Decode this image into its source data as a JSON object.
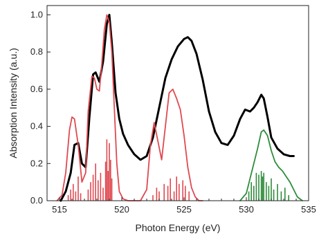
{
  "chart_data": {
    "type": "line",
    "title": "",
    "xlabel": "Photon Energy (eV)",
    "ylabel": "Absorption Intensity (a.u.)",
    "xlim": [
      514,
      535
    ],
    "ylim": [
      0,
      1.05
    ],
    "xticks": [
      515,
      520,
      525,
      530,
      535
    ],
    "yticks": [
      0.0,
      0.2,
      0.4,
      0.6,
      0.8,
      1.0
    ],
    "xtick_labels": [
      "515",
      "520",
      "525",
      "530",
      "535"
    ],
    "ytick_labels": [
      "0.0",
      "0.2",
      "0.4",
      "0.6",
      "0.8",
      "1.0"
    ],
    "grid": false,
    "legend": "none",
    "series": [
      {
        "color": "#000000",
        "style": "line",
        "x": [
          515.1,
          515.5,
          515.9,
          516.2,
          516.5,
          516.8,
          517.1,
          517.4,
          517.7,
          517.9,
          518.2,
          518.5,
          518.8,
          519.0,
          519.2,
          519.5,
          519.8,
          520.1,
          520.5,
          521.0,
          521.5,
          522.0,
          522.5,
          523.0,
          523.5,
          524.0,
          524.5,
          525.0,
          525.3,
          525.6,
          526.0,
          526.5,
          527.0,
          527.5,
          528.0,
          528.5,
          529.0,
          529.5,
          529.9,
          530.3,
          530.6,
          530.9,
          531.2,
          531.4,
          531.7,
          532.0,
          532.5,
          533.0,
          533.5,
          533.8
        ],
        "y": [
          0.0,
          0.05,
          0.15,
          0.3,
          0.31,
          0.2,
          0.18,
          0.45,
          0.68,
          0.69,
          0.64,
          0.75,
          0.95,
          1.0,
          0.85,
          0.58,
          0.44,
          0.36,
          0.3,
          0.25,
          0.22,
          0.24,
          0.34,
          0.5,
          0.66,
          0.76,
          0.83,
          0.87,
          0.88,
          0.86,
          0.79,
          0.65,
          0.48,
          0.37,
          0.31,
          0.3,
          0.35,
          0.44,
          0.49,
          0.48,
          0.5,
          0.53,
          0.57,
          0.55,
          0.45,
          0.34,
          0.28,
          0.25,
          0.24,
          0.24
        ]
      },
      {
        "color": "#e0484f",
        "style": "line",
        "x": [
          514.8,
          515.2,
          515.5,
          515.8,
          516.0,
          516.2,
          516.5,
          516.8,
          517.1,
          517.3,
          517.6,
          517.8,
          518.0,
          518.2,
          518.4,
          518.6,
          518.8,
          519.0,
          519.2,
          519.4,
          519.6,
          519.8,
          520.1,
          520.5,
          521.0,
          521.5,
          522.0,
          522.3,
          522.6,
          522.9,
          523.2,
          523.5,
          523.8,
          524.1,
          524.4,
          524.7,
          525.0,
          525.3,
          525.6,
          525.9,
          526.2,
          526.5
        ],
        "y": [
          0.0,
          0.03,
          0.15,
          0.38,
          0.45,
          0.44,
          0.3,
          0.1,
          0.15,
          0.48,
          0.67,
          0.66,
          0.6,
          0.59,
          0.74,
          0.92,
          1.0,
          0.96,
          0.8,
          0.5,
          0.2,
          0.05,
          0.01,
          0.0,
          0.0,
          0.0,
          0.06,
          0.3,
          0.42,
          0.32,
          0.22,
          0.4,
          0.58,
          0.6,
          0.55,
          0.49,
          0.35,
          0.18,
          0.07,
          0.02,
          0.0,
          0.0
        ]
      },
      {
        "color": "#2e8b3a",
        "style": "line",
        "x": [
          529.5,
          530.0,
          530.3,
          530.6,
          530.9,
          531.2,
          531.4,
          531.7,
          532.0,
          532.3,
          532.6,
          532.9,
          533.2,
          533.5,
          533.8,
          534.1,
          534.5
        ],
        "y": [
          0.0,
          0.04,
          0.12,
          0.2,
          0.28,
          0.37,
          0.38,
          0.35,
          0.27,
          0.21,
          0.18,
          0.16,
          0.13,
          0.1,
          0.06,
          0.02,
          0.0
        ]
      }
    ],
    "sticks": [
      {
        "color": "#e0484f",
        "x": [
          515.7,
          515.9,
          516.1,
          516.3,
          516.5,
          516.7,
          517.3,
          517.5,
          517.7,
          517.9,
          518.1,
          518.3,
          518.5,
          518.7,
          518.8,
          518.9,
          519.0,
          519.1,
          519.2,
          522.5,
          522.8,
          523.0,
          523.4,
          523.7,
          523.9,
          524.2,
          524.4,
          524.6,
          524.9,
          525.1,
          525.4
        ],
        "y": [
          0.03,
          0.06,
          0.09,
          0.05,
          0.13,
          0.04,
          0.06,
          0.1,
          0.14,
          0.2,
          0.11,
          0.15,
          0.07,
          0.21,
          0.33,
          0.16,
          0.31,
          0.22,
          0.12,
          0.03,
          0.07,
          0.05,
          0.09,
          0.08,
          0.12,
          0.05,
          0.13,
          0.09,
          0.11,
          0.08,
          0.05
        ]
      },
      {
        "color": "#2e8b3a",
        "x": [
          530.2,
          530.4,
          530.6,
          530.8,
          531.0,
          531.2,
          531.3,
          531.4,
          531.6,
          531.8,
          532.0,
          532.2,
          532.5,
          532.8,
          533.1,
          533.4
        ],
        "y": [
          0.05,
          0.1,
          0.08,
          0.15,
          0.14,
          0.16,
          0.13,
          0.15,
          0.1,
          0.08,
          0.12,
          0.06,
          0.09,
          0.05,
          0.07,
          0.03
        ]
      }
    ]
  }
}
